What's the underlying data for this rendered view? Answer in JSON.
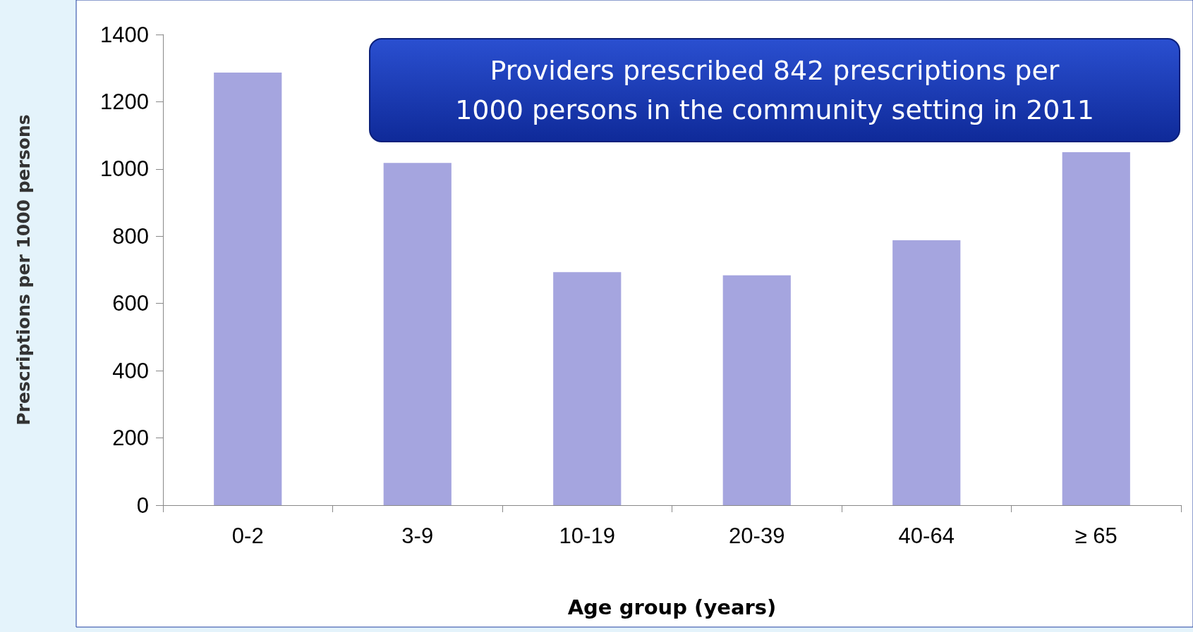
{
  "chart_data": {
    "type": "bar",
    "xlabel": "Age group (years)",
    "ylabel": "Prescriptions per 1000 persons",
    "categories": [
      "0-2",
      "3-9",
      "10-19",
      "20-39",
      "40-64",
      "≥ 65"
    ],
    "values": [
      1287,
      1018,
      693,
      684,
      788,
      1050
    ],
    "color": "#a5a5df",
    "ylim": [
      0,
      1400
    ],
    "yticks": [
      0,
      200,
      400,
      600,
      800,
      1000,
      1200,
      1400
    ],
    "grid": false,
    "annotations": [
      "Providers prescribed 842 prescriptions per\n1000 persons in the community setting in 2011"
    ]
  }
}
